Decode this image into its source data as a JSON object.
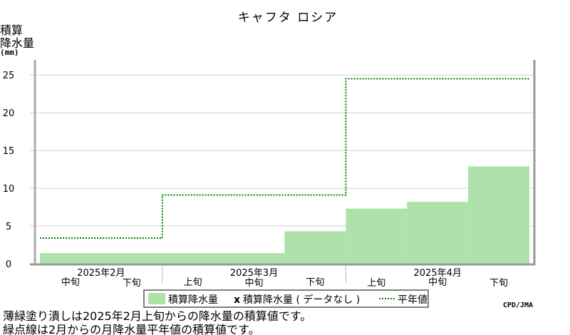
{
  "chart_data": {
    "type": "area",
    "title": "キャフタ ロシア",
    "ylabel_lines": [
      "積算",
      "降水量"
    ],
    "yunit": "(mm)",
    "ylim": [
      0,
      27
    ],
    "yticks": [
      0,
      5,
      10,
      15,
      20,
      25
    ],
    "grid": true,
    "periods": [
      {
        "label": "中旬",
        "month": "2025年2月"
      },
      {
        "label": "下旬",
        "month": "2025年2月"
      },
      {
        "label": "上旬",
        "month": "2025年3月"
      },
      {
        "label": "中旬",
        "month": "2025年3月"
      },
      {
        "label": "下旬",
        "month": "2025年3月"
      },
      {
        "label": "上旬",
        "month": "2025年4月"
      },
      {
        "label": "中旬",
        "month": "2025年4月"
      },
      {
        "label": "下旬",
        "month": "2025年4月"
      }
    ],
    "months": [
      {
        "label": "2025年2月",
        "start": 0,
        "end": 2
      },
      {
        "label": "2025年3月",
        "start": 2,
        "end": 5
      },
      {
        "label": "2025年4月",
        "start": 5,
        "end": 8
      }
    ],
    "series": [
      {
        "name": "積算降水量",
        "style": "filled-step",
        "color": "#aee2aa",
        "values": [
          1.4,
          1.4,
          1.4,
          1.4,
          4.3,
          7.3,
          8.2,
          12.9
        ]
      },
      {
        "name": "平年値",
        "style": "dotted-step",
        "color": "#008000",
        "values": [
          3.4,
          3.4,
          9.1,
          9.1,
          9.1,
          24.5,
          24.5,
          24.5
        ]
      }
    ],
    "missing_marker": {
      "symbol": "x",
      "label": "積算降水量 ( データなし )"
    }
  },
  "legend": {
    "item1": "積算降水量",
    "marker": "x",
    "item2": "積算降水量 ( データなし )",
    "item3": "平年値"
  },
  "notes": [
    "薄緑塗り潰しは2025年2月上旬からの降水量の積算値です。",
    "緑点線は2月からの月降水量平年値の積算値です。"
  ],
  "credit": "CPD/JMA"
}
